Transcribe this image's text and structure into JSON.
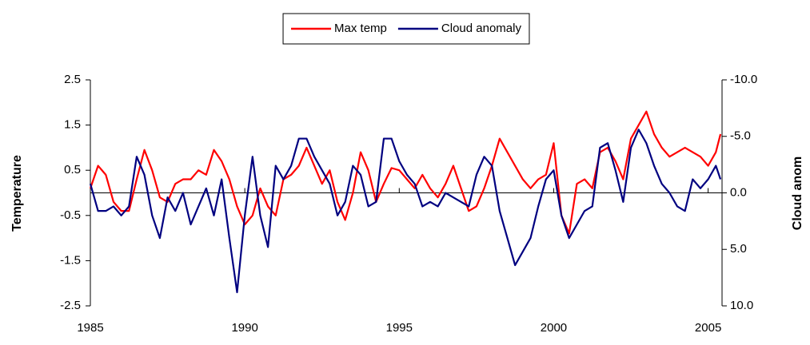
{
  "chart_data": {
    "type": "line",
    "y_label": "Temperature",
    "y2_label": "Cloud anom",
    "x": [
      1985,
      1985.25,
      1985.5,
      1985.75,
      1986,
      1986.25,
      1986.5,
      1986.75,
      1987,
      1987.25,
      1987.5,
      1987.75,
      1988,
      1988.25,
      1988.5,
      1988.75,
      1989,
      1989.25,
      1989.5,
      1989.75,
      1990,
      1990.25,
      1990.5,
      1990.75,
      1991,
      1991.25,
      1991.5,
      1991.75,
      1992,
      1992.25,
      1992.5,
      1992.75,
      1993,
      1993.25,
      1993.5,
      1993.75,
      1994,
      1994.25,
      1994.5,
      1994.75,
      1995,
      1995.25,
      1995.5,
      1995.75,
      1996,
      1996.25,
      1996.5,
      1996.75,
      1997,
      1997.25,
      1997.5,
      1997.75,
      1998,
      1998.25,
      1998.5,
      1998.75,
      1999,
      1999.25,
      1999.5,
      1999.75,
      2000,
      2000.25,
      2000.5,
      2000.75,
      2001,
      2001.25,
      2001.5,
      2001.75,
      2002,
      2002.25,
      2002.5,
      2002.75,
      2003,
      2003.25,
      2003.5,
      2003.75,
      2004,
      2004.25,
      2004.5,
      2004.75,
      2005,
      2005.25,
      2005.4
    ],
    "series": [
      {
        "name": "Max temp",
        "color": "#ff0000",
        "axis": "y",
        "values": [
          0.1,
          0.6,
          0.4,
          -0.2,
          -0.4,
          -0.4,
          0.3,
          0.95,
          0.5,
          -0.1,
          -0.2,
          0.2,
          0.3,
          0.3,
          0.5,
          0.4,
          0.95,
          0.7,
          0.3,
          -0.3,
          -0.7,
          -0.5,
          0.1,
          -0.3,
          -0.5,
          0.3,
          0.4,
          0.6,
          1.0,
          0.6,
          0.2,
          0.5,
          -0.2,
          -0.6,
          0.0,
          0.9,
          0.5,
          -0.2,
          0.2,
          0.55,
          0.5,
          0.3,
          0.1,
          0.4,
          0.1,
          -0.1,
          0.2,
          0.6,
          0.1,
          -0.4,
          -0.3,
          0.1,
          0.6,
          1.2,
          0.9,
          0.6,
          0.3,
          0.1,
          0.3,
          0.4,
          1.1,
          -0.5,
          -0.9,
          0.2,
          0.3,
          0.1,
          0.9,
          1.0,
          0.7,
          0.3,
          1.2,
          1.5,
          1.8,
          1.3,
          1.0,
          0.8,
          0.9,
          1.0,
          0.9,
          0.8,
          0.6,
          0.9,
          1.3
        ]
      },
      {
        "name": "Cloud anomaly",
        "color": "#000080",
        "axis": "y2",
        "values": [
          -0.8,
          1.6,
          1.6,
          1.2,
          2.0,
          1.2,
          -3.2,
          -1.6,
          2.0,
          4.0,
          0.4,
          1.6,
          0,
          2.8,
          1.2,
          -0.4,
          2.0,
          -1.2,
          4.0,
          8.8,
          2.0,
          -3.2,
          2.0,
          4.8,
          -2.4,
          -1.2,
          -2.4,
          -4.8,
          -4.8,
          -3.2,
          -2.0,
          -0.8,
          2.0,
          0.8,
          -2.4,
          -1.6,
          1.2,
          0.8,
          -4.8,
          -4.8,
          -2.8,
          -1.6,
          -0.8,
          1.2,
          0.8,
          1.2,
          0,
          0.4,
          0.8,
          1.2,
          -1.6,
          -3.2,
          -2.4,
          1.6,
          4.0,
          6.4,
          5.2,
          4.0,
          1.2,
          -1.2,
          -2.0,
          2.0,
          4.0,
          2.8,
          1.6,
          1.2,
          -4.0,
          -4.4,
          -2.0,
          0.8,
          -4.0,
          -5.6,
          -4.4,
          -2.4,
          -0.8,
          0,
          1.2,
          1.6,
          -1.2,
          -0.4,
          -1.2,
          -2.4,
          -1.2
        ]
      }
    ],
    "xlim": [
      1985,
      2005.45
    ],
    "xticks": [
      1985,
      1990,
      1995,
      2000,
      2005
    ],
    "ylim": [
      -2.5,
      2.5
    ],
    "yticks": [
      -2.5,
      -1.5,
      -0.5,
      0.5,
      1.5,
      2.5
    ],
    "y2lim": [
      -10,
      10
    ],
    "y2_inverted": true,
    "y2ticks": [
      {
        "value": -10,
        "label": "-10.0"
      },
      {
        "value": -5,
        "label": "-5.0"
      },
      {
        "value": 0,
        "label": "0.0"
      },
      {
        "value": 5,
        "label": "5.0"
      },
      {
        "value": 10,
        "label": "10.0"
      }
    ],
    "legend": "top"
  }
}
